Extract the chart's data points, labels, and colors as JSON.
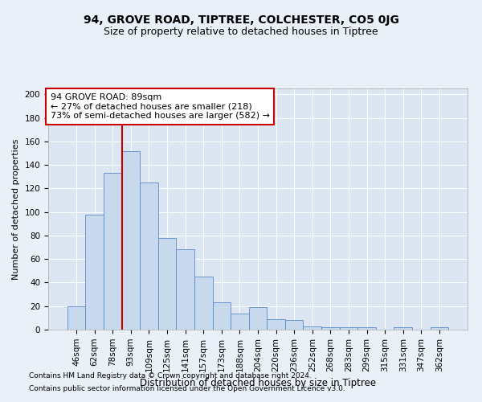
{
  "title1": "94, GROVE ROAD, TIPTREE, COLCHESTER, CO5 0JG",
  "title2": "Size of property relative to detached houses in Tiptree",
  "xlabel": "Distribution of detached houses by size in Tiptree",
  "ylabel": "Number of detached properties",
  "categories": [
    "46sqm",
    "62sqm",
    "78sqm",
    "93sqm",
    "109sqm",
    "125sqm",
    "141sqm",
    "157sqm",
    "173sqm",
    "188sqm",
    "204sqm",
    "220sqm",
    "236sqm",
    "252sqm",
    "268sqm",
    "283sqm",
    "299sqm",
    "315sqm",
    "331sqm",
    "347sqm",
    "362sqm"
  ],
  "values": [
    20,
    98,
    133,
    152,
    125,
    78,
    68,
    45,
    23,
    14,
    19,
    9,
    8,
    3,
    2,
    2,
    2,
    0,
    2,
    0,
    2
  ],
  "bar_color": "#c8d9ee",
  "bar_edge_color": "#5b8ac8",
  "vline_color": "#cc0000",
  "annotation_text": "94 GROVE ROAD: 89sqm\n← 27% of detached houses are smaller (218)\n73% of semi-detached houses are larger (582) →",
  "annotation_box_color": "#ffffff",
  "annotation_box_edge": "#cc0000",
  "ylim": [
    0,
    205
  ],
  "yticks": [
    0,
    20,
    40,
    60,
    80,
    100,
    120,
    140,
    160,
    180,
    200
  ],
  "footer1": "Contains HM Land Registry data © Crown copyright and database right 2024.",
  "footer2": "Contains public sector information licensed under the Open Government Licence v3.0.",
  "background_color": "#eaf0f8",
  "plot_bg_color": "#dce6f2",
  "grid_color": "#ffffff",
  "title1_fontsize": 10,
  "title2_fontsize": 9,
  "xlabel_fontsize": 8.5,
  "ylabel_fontsize": 8,
  "tick_fontsize": 7.5,
  "footer_fontsize": 6.5,
  "ann_fontsize": 8
}
